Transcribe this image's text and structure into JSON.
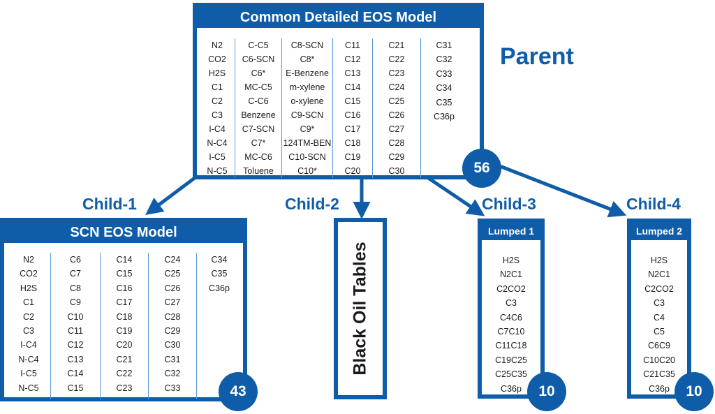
{
  "parent": {
    "title": "Common Detailed EOS Model",
    "label": "Parent",
    "count": "56",
    "columns": [
      [
        "N2",
        "CO2",
        "H2S",
        "C1",
        "C2",
        "C3",
        "I-C4",
        "N-C4",
        "I-C5",
        "N-C5"
      ],
      [
        "C-C5",
        "C6-SCN",
        "C6*",
        "MC-C5",
        "C-C6",
        "Benzene",
        "C7-SCN",
        "C7*",
        "MC-C6",
        "Toluene"
      ],
      [
        "C8-SCN",
        "C8*",
        "E-Benzene",
        "m-xylene",
        "o-xylene",
        "C9-SCN",
        "C9*",
        "124TM-BEN",
        "C10-SCN",
        "C10*"
      ],
      [
        "C11",
        "C12",
        "C13",
        "C14",
        "C15",
        "C16",
        "C17",
        "C18",
        "C19",
        "C20"
      ],
      [
        "C21",
        "C22",
        "C23",
        "C24",
        "C25",
        "C26",
        "C27",
        "C28",
        "C29",
        "C30"
      ],
      [
        "C31",
        "C32",
        "C33",
        "C34",
        "C35",
        "C36p"
      ]
    ]
  },
  "child1": {
    "label": "Child-1",
    "title": "SCN EOS Model",
    "count": "43",
    "columns": [
      [
        "N2",
        "CO2",
        "H2S",
        "C1",
        "C2",
        "C3",
        "I-C4",
        "N-C4",
        "I-C5",
        "N-C5"
      ],
      [
        "C6",
        "C7",
        "C8",
        "C9",
        "C10",
        "C11",
        "C12",
        "C13",
        "C14",
        "C15"
      ],
      [
        "C14",
        "C15",
        "C16",
        "C17",
        "C18",
        "C19",
        "C20",
        "C21",
        "C22",
        "C23"
      ],
      [
        "C24",
        "C25",
        "C26",
        "C27",
        "C28",
        "C29",
        "C30",
        "C31",
        "C32",
        "C33"
      ],
      [
        "C34",
        "C35",
        "C36p"
      ]
    ]
  },
  "child2": {
    "label": "Child-2",
    "title": "Black Oil Tables"
  },
  "child3": {
    "label": "Child-3",
    "title": "Lumped 1",
    "count": "10",
    "items": [
      "H2S",
      "N2C1",
      "C2CO2",
      "C3",
      "C4C6",
      "C7C10",
      "C11C18",
      "C19C25",
      "C25C35",
      "C36p"
    ]
  },
  "child4": {
    "label": "Child-4",
    "title": "Lumped 2",
    "count": "10",
    "items": [
      "H2S",
      "N2C1",
      "C2CO2",
      "C3",
      "C4",
      "C5",
      "C6C9",
      "C10C20",
      "C21C35",
      "C36p"
    ]
  },
  "colors": {
    "primary": "#0f5ca8",
    "divider": "#5b9bd5"
  }
}
